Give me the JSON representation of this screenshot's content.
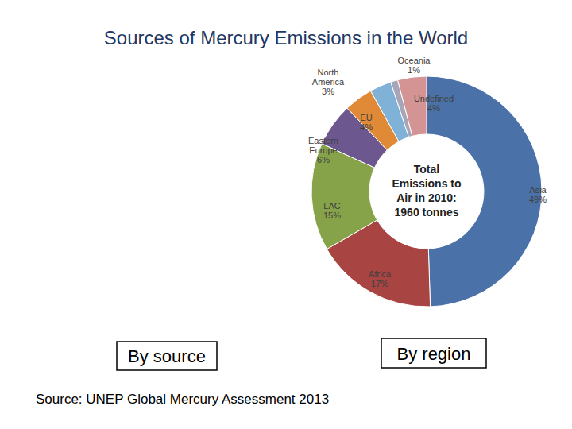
{
  "chart_data": {
    "type": "pie",
    "title": "Sources of Mercury Emissions in the World",
    "categories": [
      "Asia",
      "Africa",
      "LAC",
      "Eastern Europe",
      "EU",
      "North America",
      "Oceania",
      "Undefined"
    ],
    "values": [
      49,
      17,
      15,
      6,
      4,
      3,
      1,
      4
    ],
    "value_labels": [
      "49%",
      "17%",
      "15%",
      "6%",
      "4%",
      "3%",
      "1%",
      "4%"
    ],
    "colors": [
      "#4a72a8",
      "#a84442",
      "#87a34a",
      "#6d578f",
      "#e08a37",
      "#7fb2d6",
      "#a6a6b8",
      "#d49494"
    ],
    "data_labels": true,
    "annotations": [
      "Total Emissions to Air in 2010: 1960 tonnes",
      "By source",
      "By region",
      "Source: UNEP Global Mercury Assessment 2013"
    ]
  }
}
